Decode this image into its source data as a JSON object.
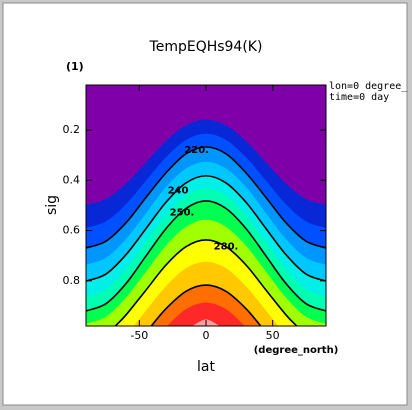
{
  "chart_data": {
    "type": "contour",
    "title": "TempEQHs94(K)",
    "panel_label": "(1)",
    "annotations": [
      "lon=0 degree_",
      "time=0 day"
    ],
    "x_label": "lat",
    "x_unit": "(degree_north)",
    "y_label": "sig",
    "xlim": [
      -90,
      90
    ],
    "ylim": [
      0.02,
      0.98
    ],
    "y_inverted": true,
    "xticks": [
      -50,
      0,
      50
    ],
    "yticks": [
      0.2,
      0.4,
      0.6,
      0.8
    ],
    "top_color": "#7f00a8",
    "line_color": "#000000",
    "contours": [
      {
        "color": "#0828d8",
        "line": false,
        "lat": [
          -90,
          -75,
          -60,
          -45,
          -30,
          -15,
          0,
          15,
          30,
          45,
          60,
          75,
          90
        ],
        "sig": [
          0.498,
          0.475,
          0.414,
          0.329,
          0.244,
          0.182,
          0.159,
          0.182,
          0.244,
          0.329,
          0.414,
          0.475,
          0.498
        ]
      },
      {
        "color": "#0050ff",
        "line": false,
        "lat": [
          -90,
          -75,
          -60,
          -45,
          -30,
          -15,
          0,
          15,
          30,
          45,
          60,
          75,
          90
        ],
        "sig": [
          0.59,
          0.564,
          0.496,
          0.402,
          0.309,
          0.24,
          0.215,
          0.24,
          0.309,
          0.402,
          0.496,
          0.564,
          0.59
        ]
      },
      {
        "color": "#0096ff",
        "line": true,
        "label": "220.",
        "label_lat": -7,
        "lat": [
          -90,
          -75,
          -60,
          -45,
          -30,
          -15,
          0,
          15,
          30,
          45,
          60,
          75,
          90
        ],
        "sig": [
          0.669,
          0.642,
          0.569,
          0.468,
          0.37,
          0.294,
          0.267,
          0.294,
          0.37,
          0.468,
          0.569,
          0.642,
          0.669
        ]
      },
      {
        "color": "#00c8ff",
        "line": false,
        "lat": [
          -90,
          -75,
          -60,
          -45,
          -30,
          -15,
          0,
          15,
          30,
          45,
          60,
          75,
          90
        ],
        "sig": [
          0.737,
          0.709,
          0.635,
          0.532,
          0.427,
          0.354,
          0.327,
          0.354,
          0.427,
          0.532,
          0.635,
          0.709,
          0.737
        ]
      },
      {
        "color": "#00f0e8",
        "line": true,
        "label": "240",
        "label_lat": -21,
        "lat": [
          -90,
          -75,
          -60,
          -45,
          -30,
          -15,
          0,
          15,
          30,
          45,
          60,
          75,
          90
        ],
        "sig": [
          0.801,
          0.773,
          0.696,
          0.592,
          0.487,
          0.41,
          0.382,
          0.41,
          0.487,
          0.592,
          0.696,
          0.773,
          0.801
        ]
      },
      {
        "color": "#00ffb0",
        "line": false,
        "lat": [
          -90,
          -75,
          -60,
          -45,
          -30,
          -15,
          0,
          15,
          30,
          45,
          60,
          75,
          90
        ],
        "sig": [
          0.864,
          0.836,
          0.757,
          0.649,
          0.542,
          0.463,
          0.434,
          0.463,
          0.542,
          0.649,
          0.757,
          0.836,
          0.864
        ]
      },
      {
        "color": "#00ff50",
        "line": true,
        "label": "250.",
        "label_lat": -18,
        "lat": [
          -90,
          -75,
          -60,
          -45,
          -30,
          -15,
          0,
          15,
          30,
          45,
          60,
          75,
          90
        ],
        "sig": [
          0.92,
          0.891,
          0.811,
          0.701,
          0.592,
          0.512,
          0.482,
          0.512,
          0.592,
          0.701,
          0.811,
          0.891,
          0.92
        ]
      },
      {
        "color": "#a0ff00",
        "line": false,
        "lat": [
          -90,
          -75,
          -60,
          -45,
          -30,
          -15,
          0,
          15,
          30,
          45,
          60,
          75,
          90
        ],
        "sig": [
          0.972,
          0.944,
          0.868,
          0.765,
          0.661,
          0.586,
          0.558,
          0.586,
          0.661,
          0.765,
          0.868,
          0.944,
          0.972
        ]
      },
      {
        "color": "#ffff00",
        "line": true,
        "label": "280.",
        "label_lat": 15,
        "lat": [
          -68,
          -60,
          -45,
          -30,
          -15,
          0,
          15,
          30,
          45,
          60,
          68
        ],
        "sig": [
          0.98,
          0.936,
          0.837,
          0.737,
          0.664,
          0.637,
          0.664,
          0.737,
          0.837,
          0.936,
          0.98
        ]
      },
      {
        "color": "#ffc800",
        "line": false,
        "lat": [
          -54,
          -45,
          -30,
          -15,
          0,
          15,
          30,
          45,
          54
        ],
        "sig": [
          0.98,
          0.92,
          0.823,
          0.751,
          0.725,
          0.751,
          0.823,
          0.92,
          0.98
        ]
      },
      {
        "color": "#ff6e00",
        "line": true,
        "lat": [
          -41,
          -30,
          -15,
          0,
          15,
          30,
          41
        ],
        "sig": [
          0.98,
          0.911,
          0.842,
          0.817,
          0.842,
          0.911,
          0.98
        ]
      },
      {
        "color": "#ff2828",
        "line": false,
        "lat": [
          -29,
          -15,
          0,
          15,
          29
        ],
        "sig": [
          0.98,
          0.914,
          0.888,
          0.914,
          0.98
        ]
      },
      {
        "color": "#ffa0a0",
        "line": false,
        "lat": [
          -10,
          0,
          10
        ],
        "sig": [
          0.98,
          0.955,
          0.98
        ]
      }
    ]
  }
}
